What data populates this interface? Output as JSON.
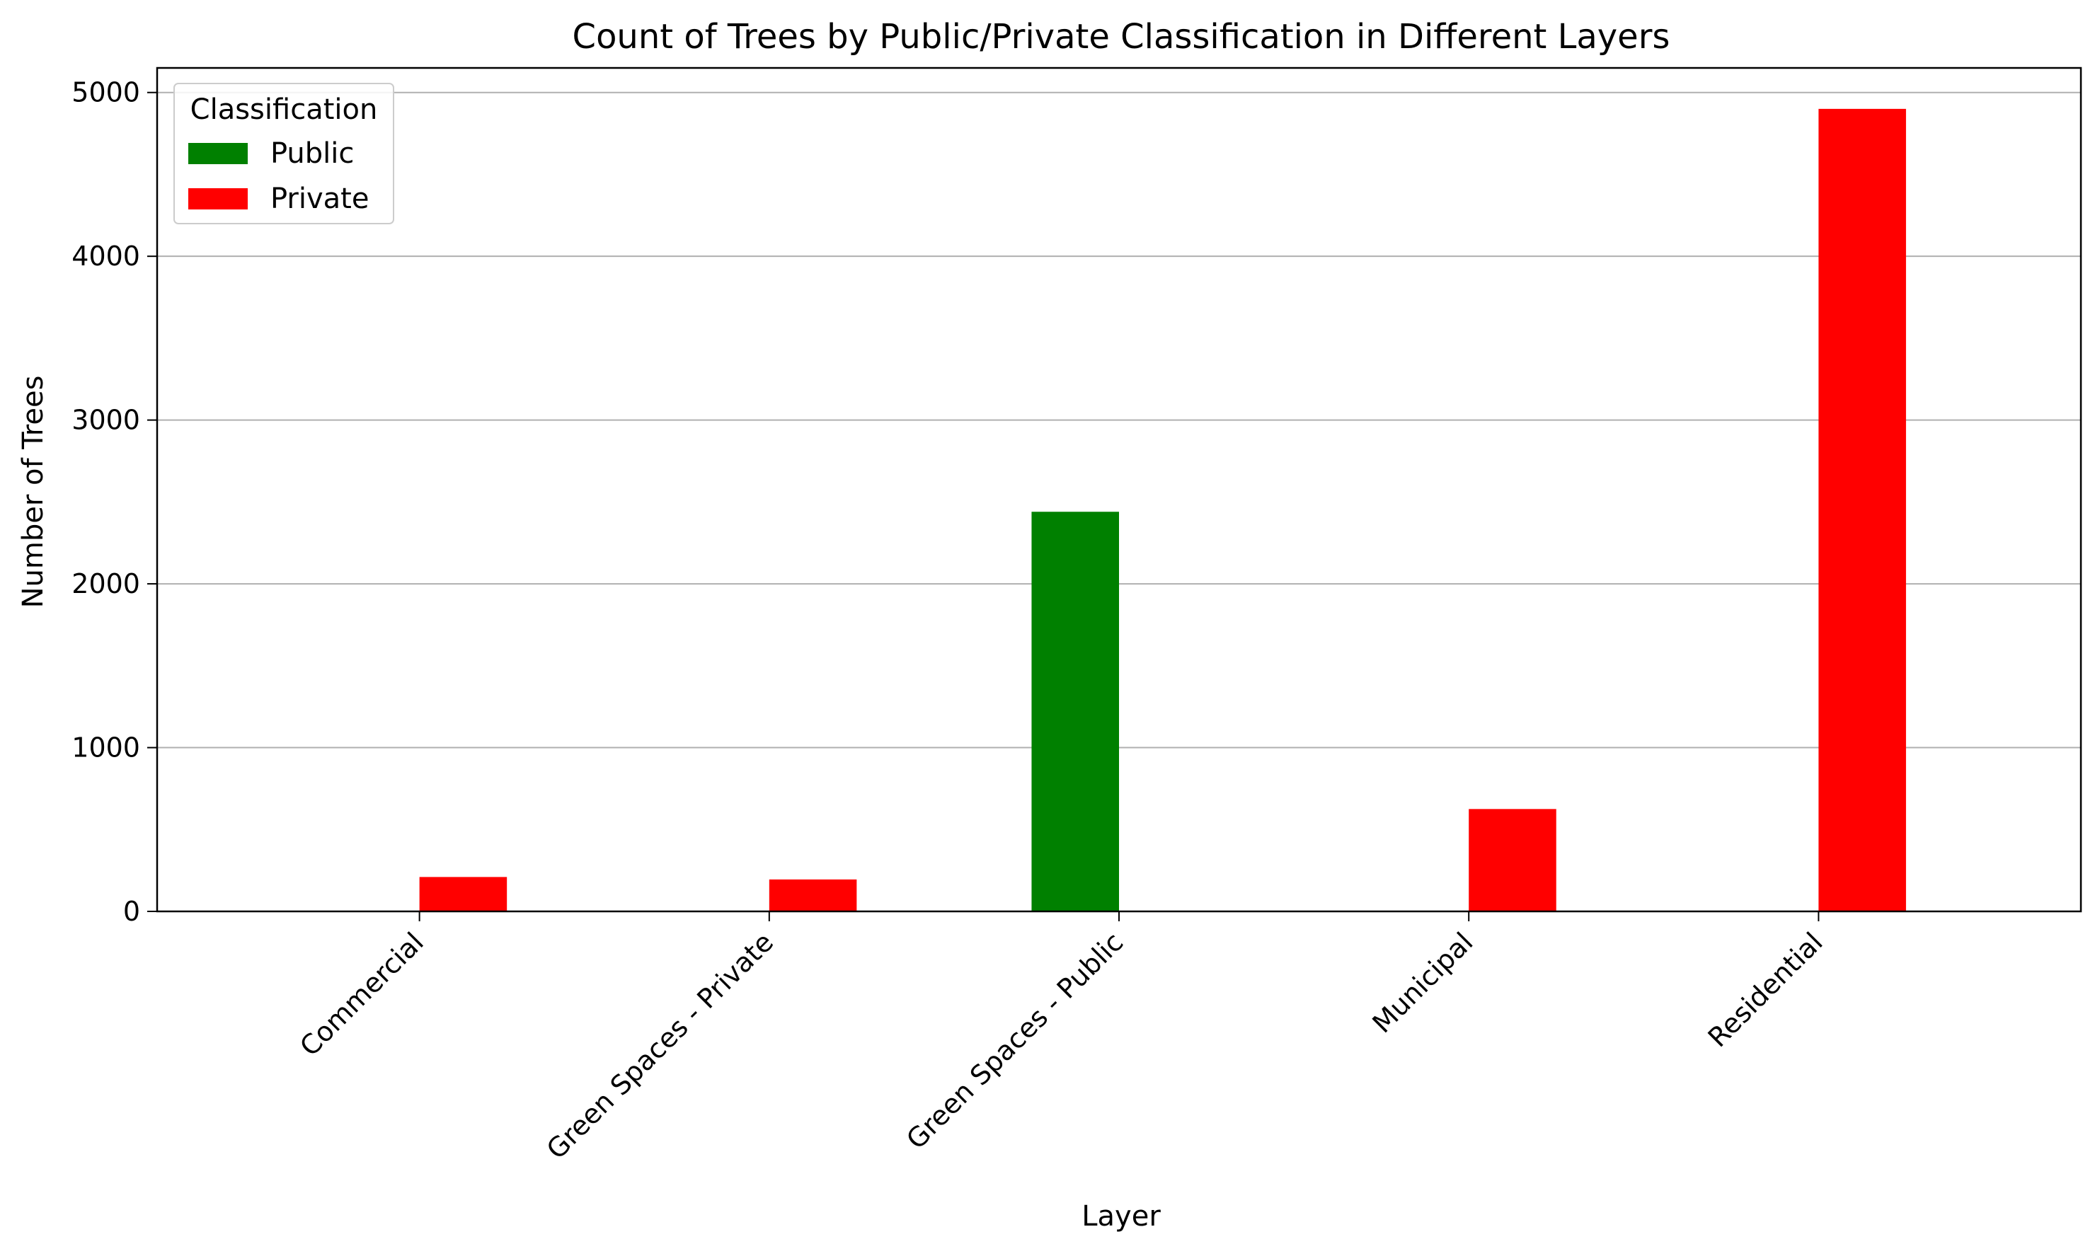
{
  "chart_data": {
    "type": "bar",
    "title": "Count of Trees by Public/Private Classification in Different Layers",
    "xlabel": "Layer",
    "ylabel": "Number of Trees",
    "categories": [
      "Commercial",
      "Green Spaces - Private",
      "Green Spaces - Public",
      "Municipal",
      "Residential"
    ],
    "series": [
      {
        "name": "Public",
        "color": "#008000",
        "values": [
          0,
          0,
          2440,
          0,
          0
        ]
      },
      {
        "name": "Private",
        "color": "#ff0000",
        "values": [
          210,
          195,
          0,
          625,
          4900
        ]
      }
    ],
    "ylim": [
      0,
      5150
    ],
    "yticks": [
      0,
      1000,
      2000,
      3000,
      4000,
      5000
    ],
    "grid": "y",
    "legend": {
      "title": "Classification",
      "placement": "top-left"
    }
  }
}
